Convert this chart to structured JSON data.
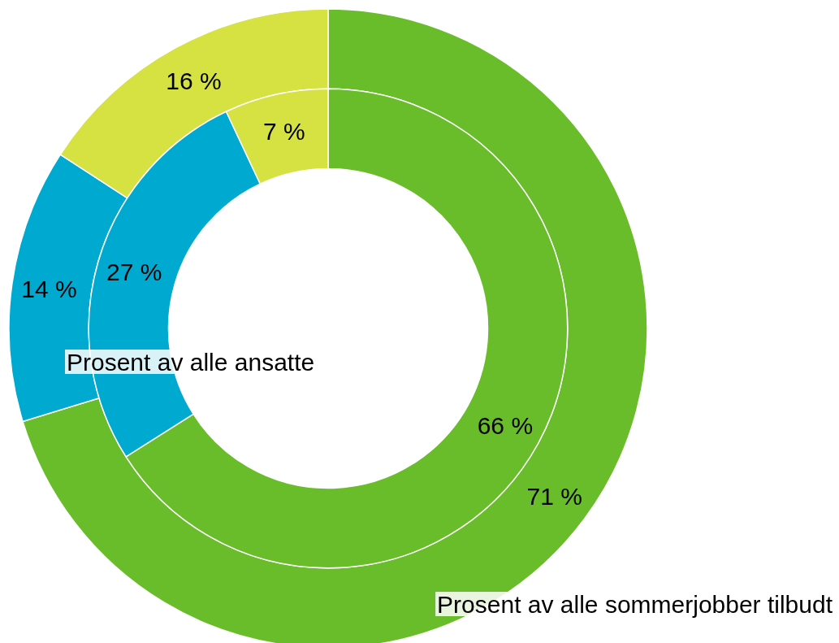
{
  "chart_data": {
    "type": "donut",
    "categories": [
      null,
      null,
      null
    ],
    "colors": [
      "#6abd2a",
      "#00a9cf",
      "#d6e142"
    ],
    "series": [
      {
        "name": "Prosent av alle sommerjobber tilbudt",
        "values": [
          71,
          14,
          16
        ],
        "value_labels": [
          "71 %",
          "14 %",
          "16 %"
        ]
      },
      {
        "name": "Prosent av alle ansatte",
        "values": [
          66,
          27,
          7
        ],
        "value_labels": [
          "66 %",
          "27 %",
          "7 %"
        ]
      }
    ]
  }
}
